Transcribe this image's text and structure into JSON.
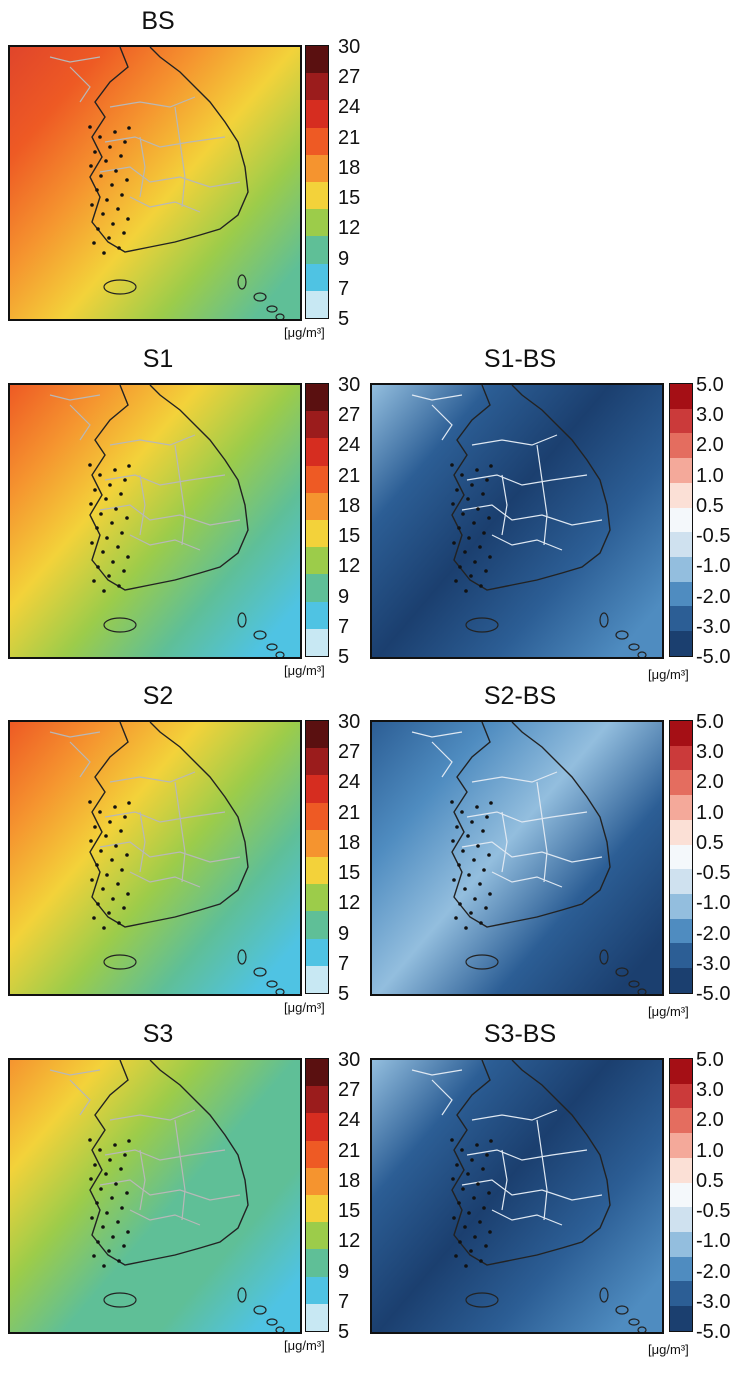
{
  "panels": [
    {
      "title": "BS",
      "kind": "abs"
    },
    {
      "title": "S1",
      "kind": "abs"
    },
    {
      "title": "S1-BS",
      "kind": "diff"
    },
    {
      "title": "S2",
      "kind": "abs"
    },
    {
      "title": "S2-BS",
      "kind": "diff"
    },
    {
      "title": "S3",
      "kind": "abs"
    },
    {
      "title": "S3-BS",
      "kind": "diff"
    }
  ],
  "abs_scale": {
    "ticks": [
      "30",
      "27",
      "24",
      "21",
      "18",
      "15",
      "12",
      "9",
      "7",
      "5"
    ],
    "colors": [
      "#5a1010",
      "#9b1c1c",
      "#d62d20",
      "#ee5a24",
      "#f5942f",
      "#f3d23a",
      "#9ccc4a",
      "#5fbf97",
      "#4fc3e3",
      "#c8e8f3"
    ],
    "unit": "[μg/m³]"
  },
  "diff_scale": {
    "ticks": [
      "5.0",
      "3.0",
      "2.0",
      "1.0",
      "0.5",
      "-0.5",
      "-1.0",
      "-2.0",
      "-3.0",
      "-5.0"
    ],
    "colors": [
      "#a50f15",
      "#cb3a3a",
      "#e46d5f",
      "#f4a99a",
      "#fbe0d6",
      "#f4f8fb",
      "#cfe1ef",
      "#93bede",
      "#4f8cc0",
      "#2c5e95",
      "#1b3f6f"
    ],
    "unit": "[μg/m³]"
  }
}
